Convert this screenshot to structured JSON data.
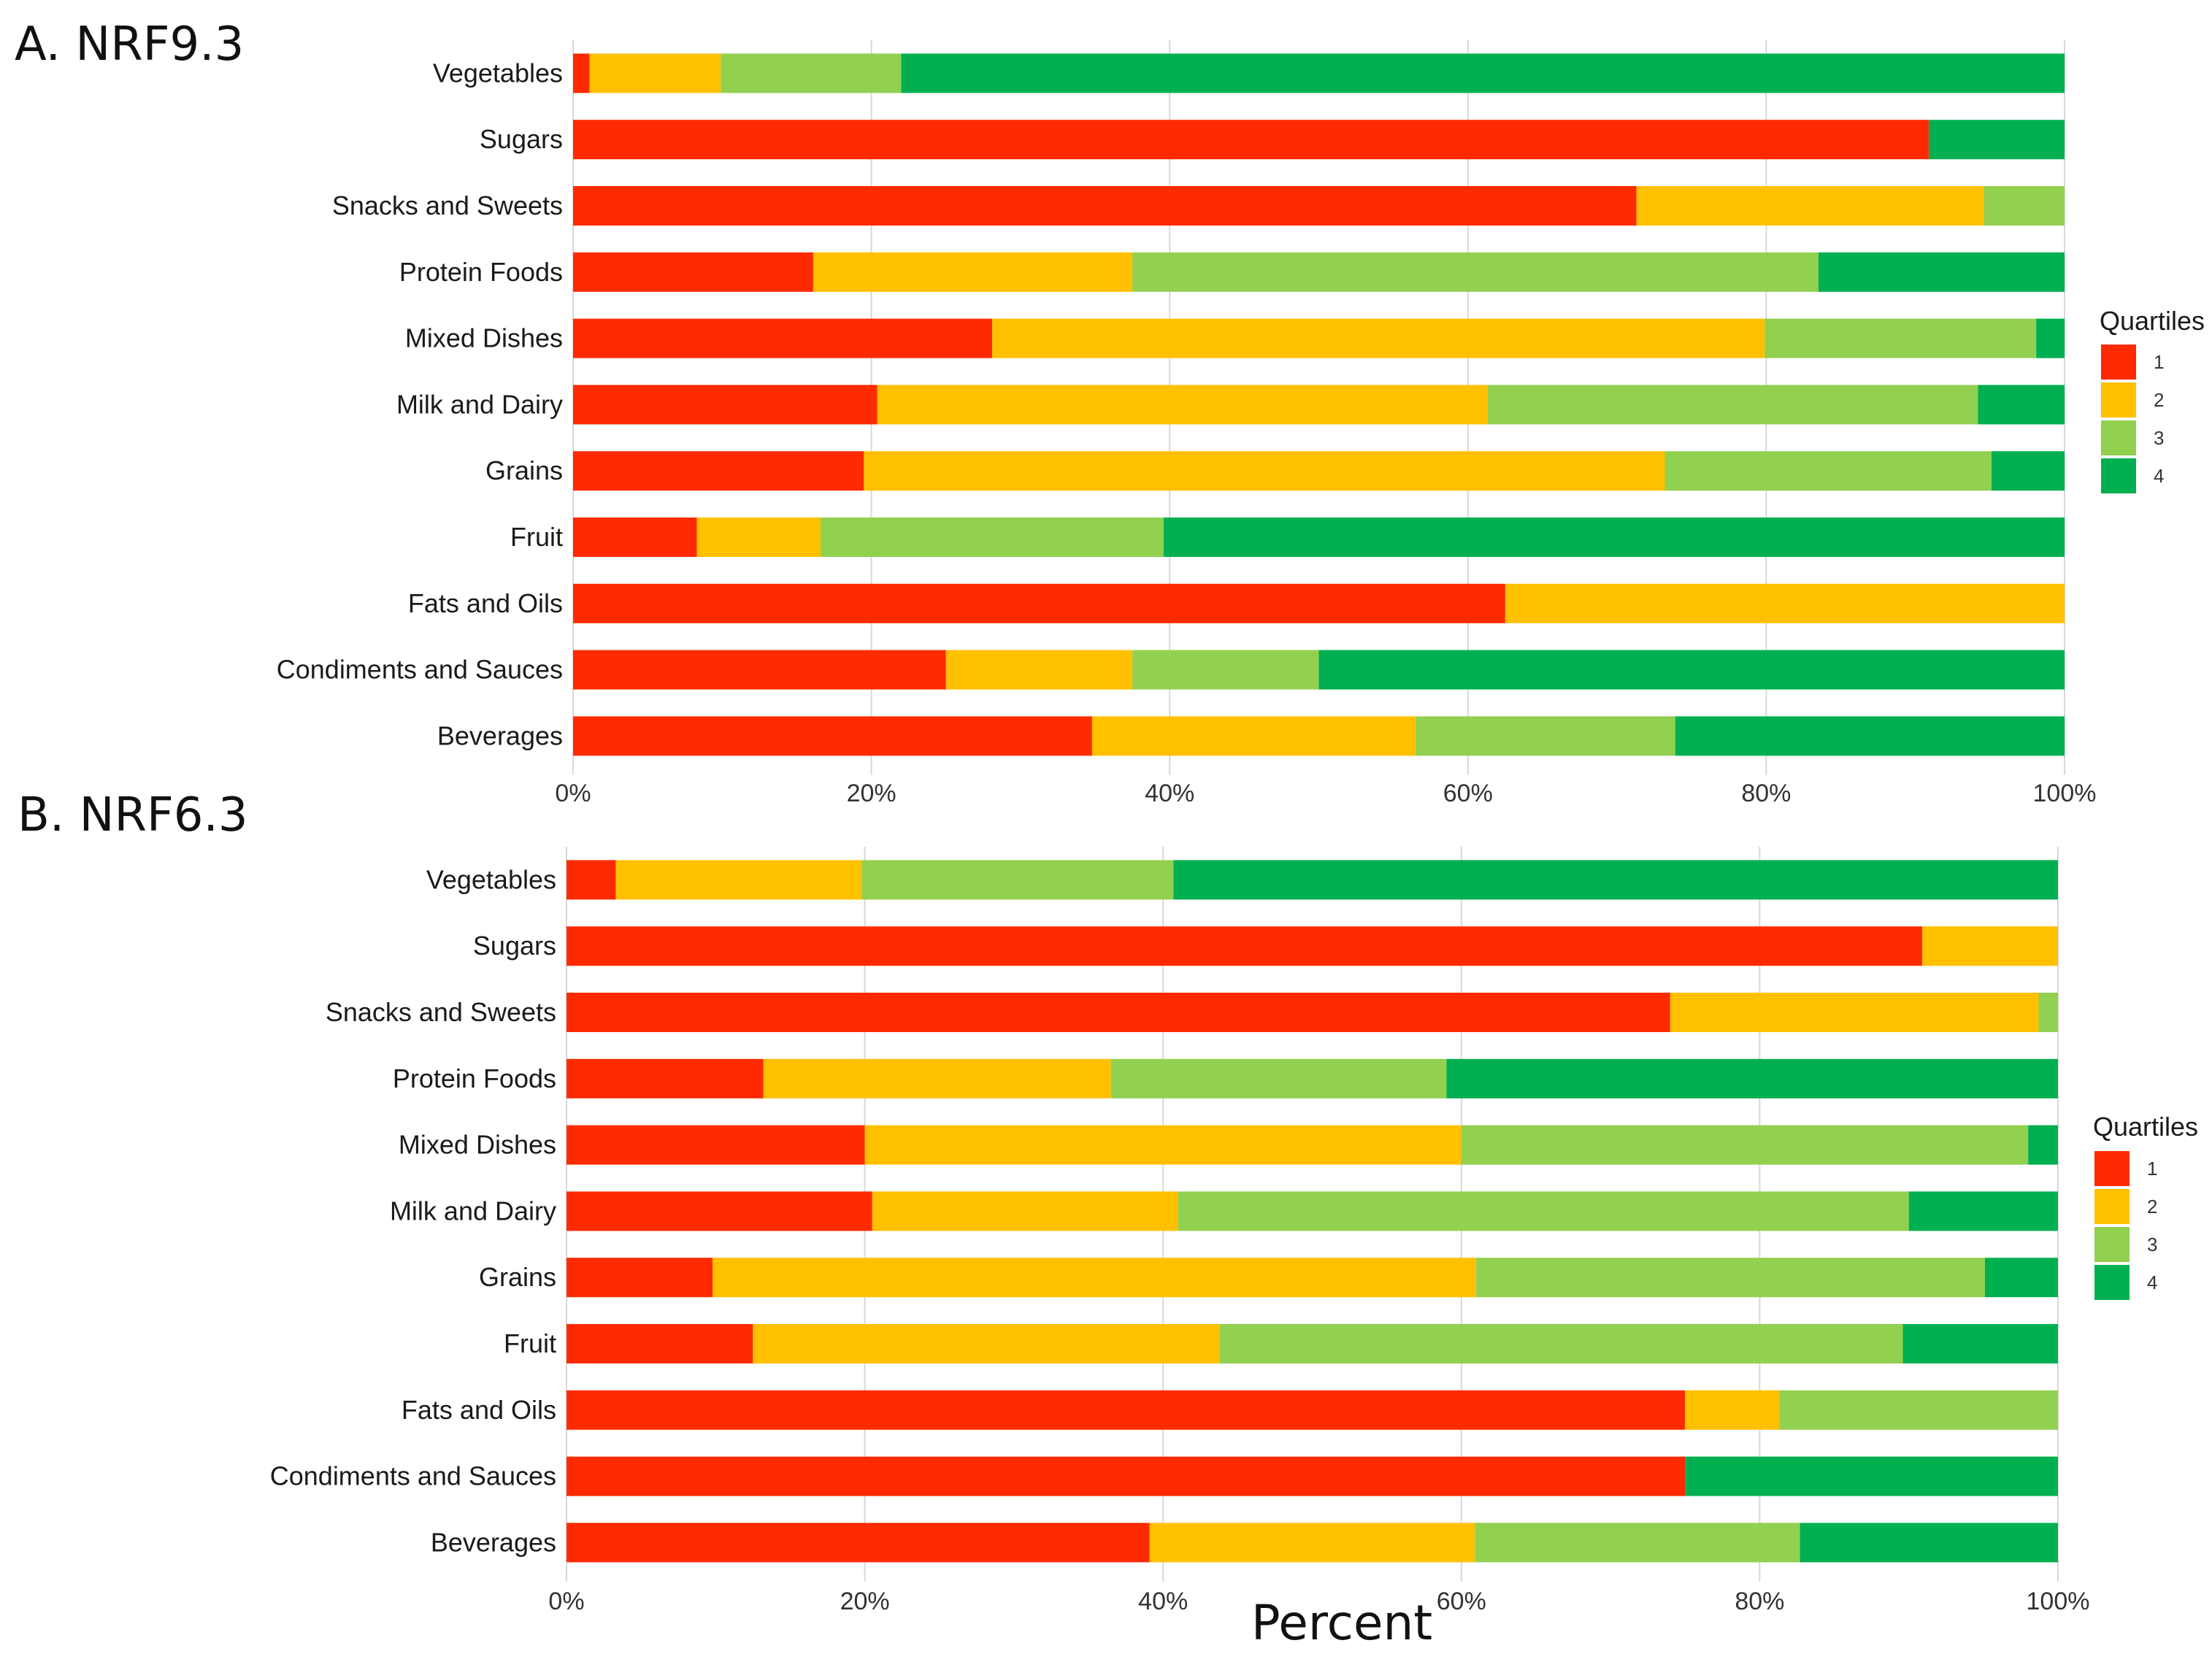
{
  "colors": {
    "q1": "#ff2a00",
    "q2": "#ffc000",
    "q3": "#92d050",
    "q4": "#00b050"
  },
  "chart_data": [
    {
      "type": "bar",
      "orientation": "horizontal",
      "stacked": true,
      "title": "A. NRF9.3",
      "xlabel": "",
      "ylabel": "",
      "xlim": [
        0,
        100
      ],
      "ticks": [
        "0%",
        "20%",
        "40%",
        "60%",
        "80%",
        "100%"
      ],
      "tick_values": [
        0,
        20,
        40,
        60,
        80,
        100
      ],
      "grid": true,
      "legend": {
        "title": "Quartiles",
        "position": "right",
        "entries": [
          "1",
          "2",
          "3",
          "4"
        ]
      },
      "categories": [
        "Vegetables",
        "Sugars",
        "Snacks and Sweets",
        "Protein Foods",
        "Mixed Dishes",
        "Milk and Dairy",
        "Grains",
        "Fruit",
        "Fats and Oils",
        "Condiments and Sauces",
        "Beverages"
      ],
      "series": [
        {
          "name": "1",
          "values": [
            1.1,
            90.9,
            71.3,
            16.1,
            28.1,
            20.4,
            19.5,
            8.3,
            62.5,
            25.0,
            34.8
          ]
        },
        {
          "name": "2",
          "values": [
            8.8,
            0,
            23.3,
            21.4,
            51.8,
            40.9,
            53.7,
            8.3,
            37.5,
            12.5,
            21.7
          ]
        },
        {
          "name": "3",
          "values": [
            12.1,
            0,
            5.4,
            46.0,
            18.2,
            32.9,
            21.9,
            23.0,
            0,
            12.5,
            17.4
          ]
        },
        {
          "name": "4",
          "values": [
            78.0,
            9.1,
            0,
            16.5,
            1.9,
            5.8,
            4.9,
            60.4,
            0,
            50.0,
            26.1
          ]
        }
      ]
    },
    {
      "type": "bar",
      "orientation": "horizontal",
      "stacked": true,
      "title": "B. NRF6.3",
      "xlabel": "Percent",
      "ylabel": "",
      "xlim": [
        0,
        100
      ],
      "ticks": [
        "0%",
        "20%",
        "40%",
        "60%",
        "80%",
        "100%"
      ],
      "tick_values": [
        0,
        20,
        40,
        60,
        80,
        100
      ],
      "grid": true,
      "legend": {
        "title": "Quartiles",
        "position": "right",
        "entries": [
          "1",
          "2",
          "3",
          "4"
        ]
      },
      "categories": [
        "Vegetables",
        "Sugars",
        "Snacks and Sweets",
        "Protein Foods",
        "Mixed Dishes",
        "Milk and Dairy",
        "Grains",
        "Fruit",
        "Fats and Oils",
        "Condiments and Sauces",
        "Beverages"
      ],
      "series": [
        {
          "name": "1",
          "values": [
            3.3,
            90.9,
            74.0,
            13.2,
            20.0,
            20.5,
            9.8,
            12.5,
            75.0,
            75.0,
            39.1
          ]
        },
        {
          "name": "2",
          "values": [
            16.5,
            9.1,
            24.7,
            23.3,
            40.0,
            20.5,
            51.2,
            31.3,
            6.3,
            0,
            21.8
          ]
        },
        {
          "name": "3",
          "values": [
            20.9,
            0,
            1.3,
            22.5,
            38.0,
            49.0,
            34.1,
            45.8,
            18.7,
            0,
            21.8
          ]
        },
        {
          "name": "4",
          "values": [
            59.3,
            0,
            0,
            41.0,
            2.0,
            10.0,
            4.9,
            10.4,
            0,
            25.0,
            17.3
          ]
        }
      ]
    }
  ]
}
